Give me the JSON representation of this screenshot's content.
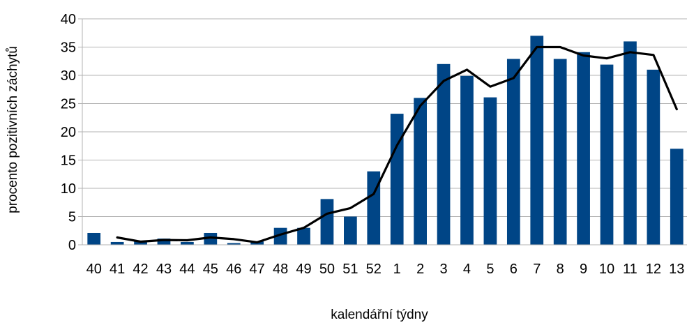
{
  "chart_data": {
    "type": "bar",
    "title": "",
    "xlabel": "kalendářní týdny",
    "ylabel": "procento pozitivních záchytů",
    "ylim": [
      0,
      40
    ],
    "ytick_step": 5,
    "grid": true,
    "legend": "none",
    "categories": [
      "40",
      "41",
      "42",
      "43",
      "44",
      "45",
      "46",
      "47",
      "48",
      "49",
      "50",
      "51",
      "52",
      "1",
      "2",
      "3",
      "4",
      "5",
      "6",
      "7",
      "8",
      "9",
      "10",
      "11",
      "12",
      "13"
    ],
    "series": [
      {
        "type": "bar",
        "color": "#004586",
        "values": [
          2.1,
          0.5,
          0.6,
          1.1,
          0.5,
          2.1,
          0.3,
          0.6,
          3.0,
          3.0,
          8.1,
          5.0,
          13.0,
          23.2,
          26.0,
          32.0,
          29.9,
          26.1,
          32.9,
          37.0,
          32.9,
          34.1,
          31.9,
          36.0,
          31.0,
          17.0
        ]
      },
      {
        "type": "line",
        "color": "#000000",
        "values": [
          null,
          1.3,
          0.55,
          0.85,
          0.8,
          1.3,
          1.0,
          0.45,
          1.8,
          3.0,
          5.5,
          6.5,
          9.0,
          17.6,
          24.6,
          29.0,
          31.0,
          28.0,
          29.5,
          35.0,
          35.0,
          33.5,
          33.0,
          34.1,
          33.6,
          24.0
        ]
      }
    ]
  }
}
